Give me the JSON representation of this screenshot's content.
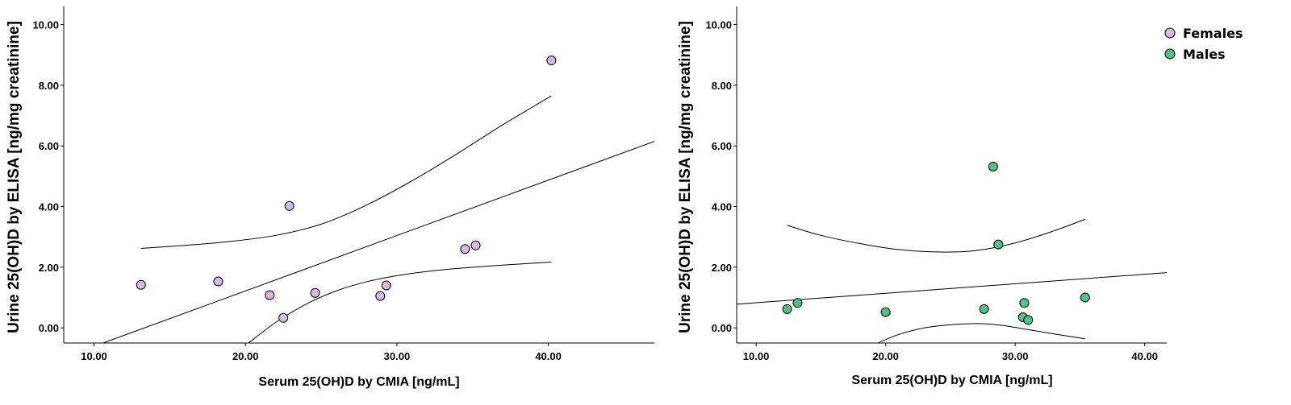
{
  "colors": {
    "females": "#D7B8E6",
    "males": "#4FC382",
    "stroke": "#000000"
  },
  "legend": [
    {
      "label": "Females",
      "color": "#D7B8E6"
    },
    {
      "label": "Males",
      "color": "#4FC382"
    }
  ],
  "chart_data": [
    {
      "type": "scatter",
      "xlabel": "Serum 25(OH)D by CMIA [ng/mL]",
      "ylabel": "Urine 25(OH)D by ELISA [ng/mg creatinine]",
      "xlim": [
        8.0,
        47.0
      ],
      "ylim": [
        -0.5,
        10.6
      ],
      "xticks": [
        "10.00",
        "20.00",
        "30.00",
        "40.00"
      ],
      "yticks": [
        "0.00",
        "2.00",
        "4.00",
        "6.00",
        "8.00",
        "10.00"
      ],
      "series": [
        {
          "name": "Females",
          "points": [
            [
              13.1,
              1.42
            ],
            [
              18.2,
              1.53
            ],
            [
              21.6,
              1.08
            ],
            [
              22.5,
              0.33
            ],
            [
              22.9,
              4.02
            ],
            [
              24.6,
              1.15
            ],
            [
              28.9,
              1.05
            ],
            [
              29.3,
              1.4
            ],
            [
              34.5,
              2.6
            ],
            [
              35.2,
              2.72
            ],
            [
              40.2,
              8.82
            ]
          ]
        }
      ],
      "fit_line": [
        [
          10.6,
          -0.5
        ],
        [
          47.0,
          6.15
        ]
      ],
      "ci_upper": [
        [
          13.1,
          2.62
        ],
        [
          16,
          2.72
        ],
        [
          19,
          2.85
        ],
        [
          22,
          3.05
        ],
        [
          25,
          3.42
        ],
        [
          28,
          4.05
        ],
        [
          31,
          4.85
        ],
        [
          34,
          5.75
        ],
        [
          37,
          6.7
        ],
        [
          40.2,
          7.65
        ]
      ],
      "ci_lower": [
        [
          20.2,
          -0.5
        ],
        [
          22,
          0.18
        ],
        [
          24,
          0.78
        ],
        [
          26,
          1.22
        ],
        [
          28,
          1.52
        ],
        [
          30,
          1.72
        ],
        [
          32,
          1.86
        ],
        [
          34,
          1.96
        ],
        [
          37,
          2.07
        ],
        [
          40.2,
          2.17
        ]
      ],
      "legend": false
    },
    {
      "type": "scatter",
      "xlabel": "Serum 25(OH)D by CMIA [ng/mL]",
      "ylabel": "Urine 25(OH)D by ELISA [ng/mg creatinine]",
      "xlim": [
        8.5,
        41.7
      ],
      "ylim": [
        -0.5,
        10.6
      ],
      "xticks": [
        "10.00",
        "20.00",
        "30.00",
        "40.00"
      ],
      "yticks": [
        "0.00",
        "2.00",
        "4.00",
        "6.00",
        "8.00",
        "10.00"
      ],
      "series": [
        {
          "name": "Males",
          "points": [
            [
              12.4,
              0.62
            ],
            [
              13.2,
              0.82
            ],
            [
              20.0,
              0.52
            ],
            [
              27.6,
              0.62
            ],
            [
              28.3,
              5.32
            ],
            [
              28.7,
              2.75
            ],
            [
              30.6,
              0.35
            ],
            [
              30.7,
              0.82
            ],
            [
              31.0,
              0.26
            ],
            [
              35.4,
              1.0
            ]
          ]
        }
      ],
      "fit_line": [
        [
          8.5,
          0.78
        ],
        [
          41.7,
          1.82
        ]
      ],
      "ci_upper": [
        [
          12.4,
          3.38
        ],
        [
          15,
          3.05
        ],
        [
          18,
          2.78
        ],
        [
          21,
          2.58
        ],
        [
          24.3,
          2.5
        ],
        [
          27,
          2.55
        ],
        [
          30,
          2.8
        ],
        [
          33,
          3.2
        ],
        [
          35.4,
          3.58
        ]
      ],
      "ci_lower": [
        [
          19.4,
          -0.5
        ],
        [
          21,
          -0.22
        ],
        [
          23,
          0.0
        ],
        [
          25,
          0.1
        ],
        [
          27.2,
          0.14
        ],
        [
          29,
          0.08
        ],
        [
          31,
          -0.06
        ],
        [
          33,
          -0.2
        ],
        [
          35.4,
          -0.36
        ]
      ],
      "legend": true
    }
  ]
}
